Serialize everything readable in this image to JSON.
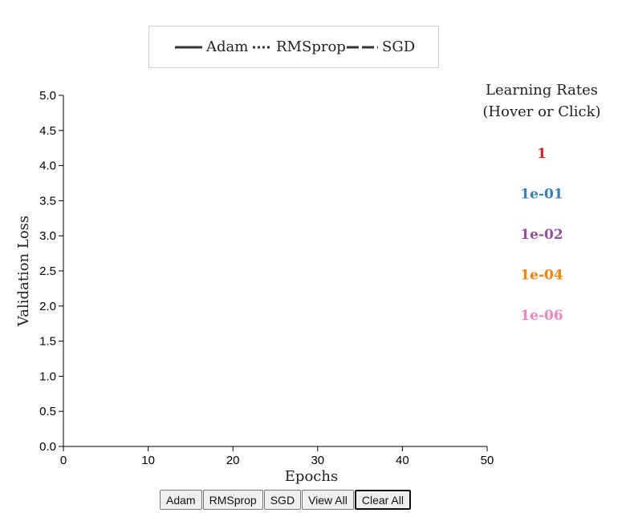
{
  "chart_data": {
    "type": "line",
    "legend": {
      "placement": "top",
      "entries": [
        {
          "name": "Adam",
          "dash": "solid"
        },
        {
          "name": "RMSprop",
          "dash": "dotted"
        },
        {
          "name": "SGD",
          "dash": "dashed"
        }
      ]
    },
    "xlabel": "Epochs",
    "ylabel": "Validation Loss",
    "xlim": [
      0,
      50
    ],
    "ylim": [
      0,
      5
    ],
    "x_ticks": [
      "0",
      "10",
      "20",
      "30",
      "40",
      "50"
    ],
    "y_ticks": [
      "0.0",
      "0.5",
      "1.0",
      "1.5",
      "2.0",
      "2.5",
      "3.0",
      "3.5",
      "4.0",
      "4.5",
      "5.0"
    ],
    "grid": false,
    "series": [],
    "learning_rates": {
      "title_line1": "Learning Rates",
      "title_line2": "(Hover or Click)",
      "items": [
        {
          "label": "1",
          "color": "#e41a1c"
        },
        {
          "label": "1e-01",
          "color": "#377eb8"
        },
        {
          "label": "1e-02",
          "color": "#984ea3"
        },
        {
          "label": "1e-04",
          "color": "#ff7f00"
        },
        {
          "label": "1e-06",
          "color": "#f781bf"
        }
      ]
    }
  },
  "controls": {
    "adam": "Adam",
    "rmsprop": "RMSprop",
    "sgd": "SGD",
    "view_all": "View All",
    "clear_all": "Clear All"
  }
}
